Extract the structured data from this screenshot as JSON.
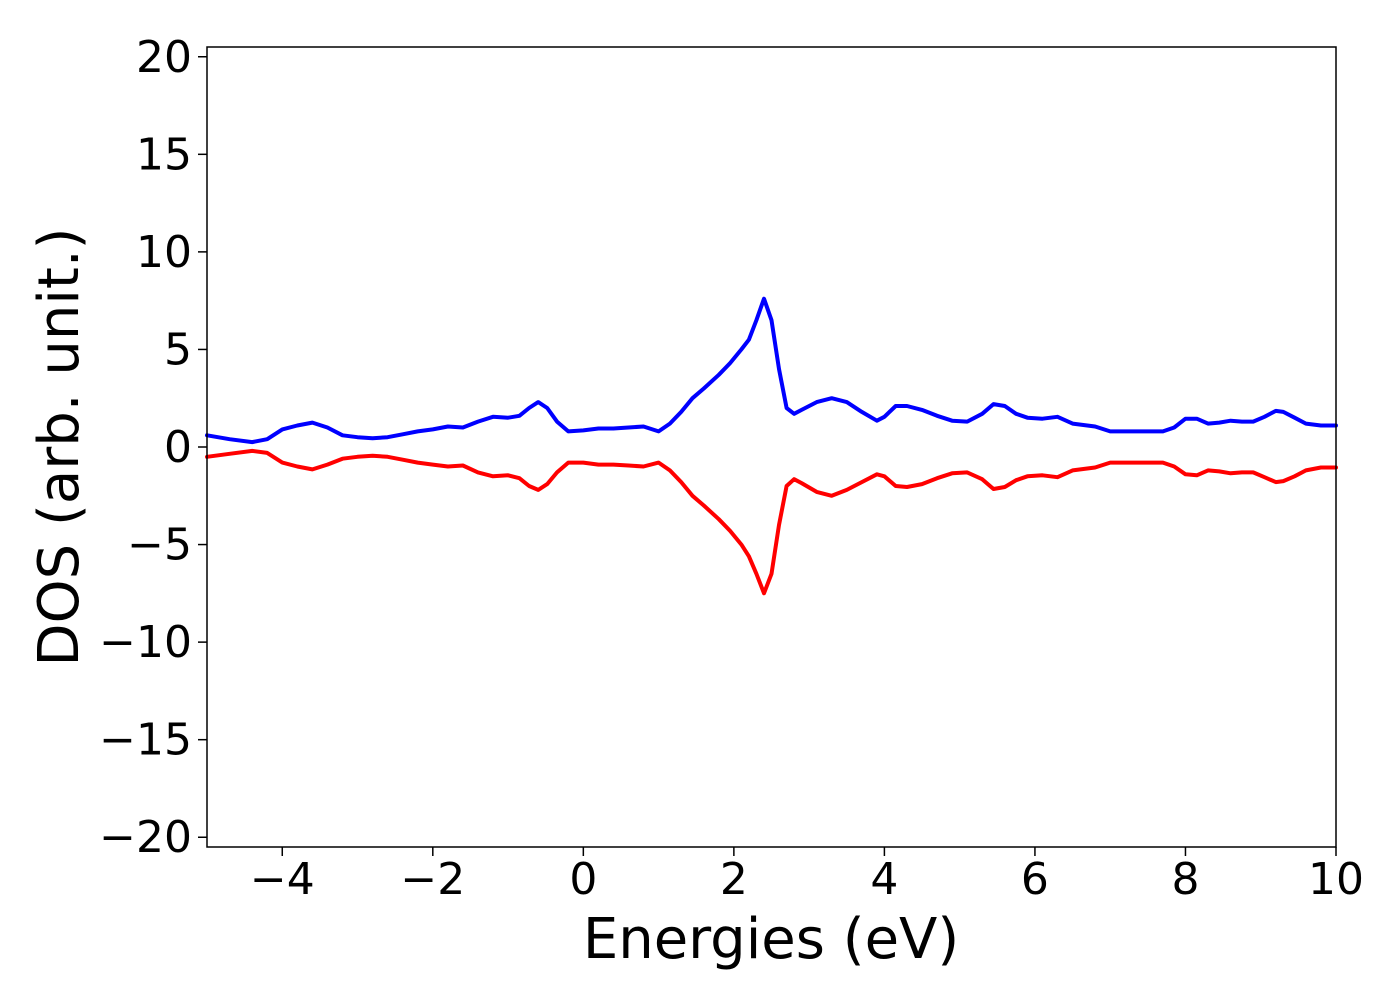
{
  "chart_data": {
    "type": "line",
    "title": "",
    "xlabel": "Energies (eV)",
    "ylabel": "DOS (arb. unit.)",
    "xlim": [
      -5,
      10
    ],
    "ylim": [
      -20.5,
      20.5
    ],
    "xticks": [
      -4,
      -2,
      0,
      2,
      4,
      6,
      8,
      10
    ],
    "yticks": [
      -20,
      -15,
      -10,
      -5,
      0,
      5,
      10,
      15,
      20
    ],
    "xtick_labels": [
      "−4",
      "−2",
      "0",
      "2",
      "4",
      "6",
      "8",
      "10"
    ],
    "ytick_labels": [
      "−20",
      "−15",
      "−10",
      "−5",
      "0",
      "5",
      "10",
      "15",
      "20"
    ],
    "grid": false,
    "series": [
      {
        "color": "#0000ff",
        "x": [
          -5.0,
          -4.7,
          -4.4,
          -4.2,
          -4.0,
          -3.8,
          -3.6,
          -3.4,
          -3.2,
          -3.0,
          -2.8,
          -2.6,
          -2.4,
          -2.2,
          -2.0,
          -1.8,
          -1.6,
          -1.4,
          -1.2,
          -1.0,
          -0.85,
          -0.72,
          -0.6,
          -0.48,
          -0.35,
          -0.2,
          0.0,
          0.2,
          0.4,
          0.6,
          0.8,
          1.0,
          1.15,
          1.3,
          1.45,
          1.6,
          1.8,
          1.95,
          2.1,
          2.2,
          2.3,
          2.4,
          2.5,
          2.6,
          2.7,
          2.8,
          2.9,
          3.1,
          3.3,
          3.5,
          3.7,
          3.9,
          4.0,
          4.15,
          4.3,
          4.5,
          4.7,
          4.9,
          5.1,
          5.3,
          5.45,
          5.6,
          5.75,
          5.9,
          6.1,
          6.3,
          6.5,
          6.8,
          7.0,
          7.2,
          7.4,
          7.7,
          7.85,
          8.0,
          8.15,
          8.3,
          8.45,
          8.6,
          8.75,
          8.9,
          9.05,
          9.2,
          9.3,
          9.45,
          9.6,
          9.8,
          10.0
        ],
        "values": [
          0.6,
          0.4,
          0.25,
          0.4,
          0.9,
          1.1,
          1.25,
          1.0,
          0.6,
          0.5,
          0.45,
          0.5,
          0.65,
          0.8,
          0.9,
          1.05,
          1.0,
          1.3,
          1.55,
          1.5,
          1.6,
          2.0,
          2.3,
          2.0,
          1.3,
          0.8,
          0.85,
          0.95,
          0.95,
          1.0,
          1.05,
          0.8,
          1.2,
          1.8,
          2.5,
          3.0,
          3.7,
          4.3,
          5.0,
          5.5,
          6.5,
          7.6,
          6.5,
          4.0,
          2.0,
          1.7,
          1.9,
          2.3,
          2.5,
          2.3,
          1.8,
          1.35,
          1.55,
          2.1,
          2.1,
          1.9,
          1.6,
          1.35,
          1.3,
          1.7,
          2.2,
          2.1,
          1.7,
          1.5,
          1.45,
          1.55,
          1.2,
          1.05,
          0.8,
          0.8,
          0.8,
          0.8,
          1.0,
          1.45,
          1.45,
          1.2,
          1.25,
          1.35,
          1.3,
          1.3,
          1.55,
          1.85,
          1.8,
          1.5,
          1.2,
          1.1,
          1.1
        ]
      },
      {
        "color": "#ff0000",
        "x": [
          -5.0,
          -4.7,
          -4.4,
          -4.2,
          -4.0,
          -3.8,
          -3.6,
          -3.4,
          -3.2,
          -3.0,
          -2.8,
          -2.6,
          -2.4,
          -2.2,
          -2.0,
          -1.8,
          -1.6,
          -1.4,
          -1.2,
          -1.0,
          -0.85,
          -0.72,
          -0.6,
          -0.48,
          -0.35,
          -0.2,
          0.0,
          0.2,
          0.4,
          0.6,
          0.8,
          1.0,
          1.15,
          1.3,
          1.45,
          1.6,
          1.8,
          1.95,
          2.1,
          2.2,
          2.3,
          2.4,
          2.5,
          2.6,
          2.7,
          2.8,
          2.9,
          3.1,
          3.3,
          3.5,
          3.7,
          3.9,
          4.0,
          4.15,
          4.3,
          4.5,
          4.7,
          4.9,
          5.1,
          5.3,
          5.45,
          5.6,
          5.75,
          5.9,
          6.1,
          6.3,
          6.5,
          6.8,
          7.0,
          7.2,
          7.4,
          7.7,
          7.85,
          8.0,
          8.15,
          8.3,
          8.45,
          8.6,
          8.75,
          8.9,
          9.05,
          9.2,
          9.3,
          9.45,
          9.6,
          9.8,
          10.0
        ],
        "values": [
          -0.5,
          -0.35,
          -0.2,
          -0.3,
          -0.8,
          -1.0,
          -1.15,
          -0.9,
          -0.6,
          -0.5,
          -0.45,
          -0.5,
          -0.65,
          -0.8,
          -0.9,
          -1.0,
          -0.95,
          -1.3,
          -1.5,
          -1.45,
          -1.6,
          -2.0,
          -2.2,
          -1.9,
          -1.3,
          -0.8,
          -0.8,
          -0.9,
          -0.9,
          -0.95,
          -1.0,
          -0.8,
          -1.2,
          -1.8,
          -2.5,
          -3.0,
          -3.7,
          -4.3,
          -5.0,
          -5.6,
          -6.5,
          -7.5,
          -6.5,
          -4.0,
          -2.0,
          -1.65,
          -1.85,
          -2.3,
          -2.5,
          -2.2,
          -1.8,
          -1.4,
          -1.5,
          -2.0,
          -2.05,
          -1.9,
          -1.6,
          -1.35,
          -1.3,
          -1.65,
          -2.15,
          -2.05,
          -1.7,
          -1.5,
          -1.45,
          -1.55,
          -1.2,
          -1.05,
          -0.8,
          -0.8,
          -0.8,
          -0.8,
          -1.0,
          -1.4,
          -1.45,
          -1.2,
          -1.25,
          -1.35,
          -1.3,
          -1.3,
          -1.55,
          -1.8,
          -1.75,
          -1.5,
          -1.2,
          -1.05,
          -1.05
        ]
      }
    ]
  }
}
